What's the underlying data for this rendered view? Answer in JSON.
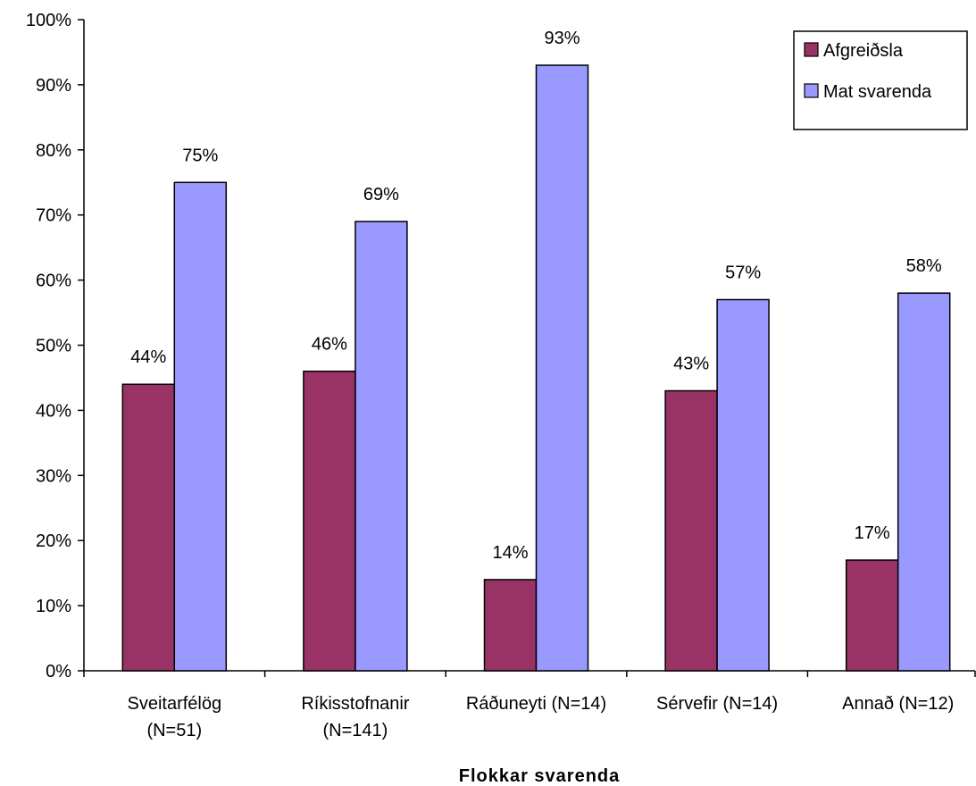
{
  "chart_data": {
    "type": "bar",
    "title": "",
    "xlabel": "Flokkar svarenda",
    "ylabel": "",
    "ylim": [
      0,
      100
    ],
    "yticks": [
      "0%",
      "10%",
      "20%",
      "30%",
      "40%",
      "50%",
      "60%",
      "70%",
      "80%",
      "90%",
      "100%"
    ],
    "categories": [
      [
        "Sveitarfélög",
        "(N=51)"
      ],
      [
        "Ríkisstofnanir",
        "(N=141)"
      ],
      [
        "Ráðuneyti (N=14)"
      ],
      [
        "Sérvefir (N=14)"
      ],
      [
        "Annað (N=12)"
      ]
    ],
    "series": [
      {
        "name": "Afgreiðsla",
        "color": "#993366",
        "values": [
          44,
          46,
          14,
          43,
          17
        ]
      },
      {
        "name": "Mat svarenda",
        "color": "#9999ff",
        "values": [
          75,
          69,
          93,
          57,
          58
        ]
      }
    ],
    "grid": false,
    "legend_position": "top-right",
    "value_suffix": "%"
  }
}
